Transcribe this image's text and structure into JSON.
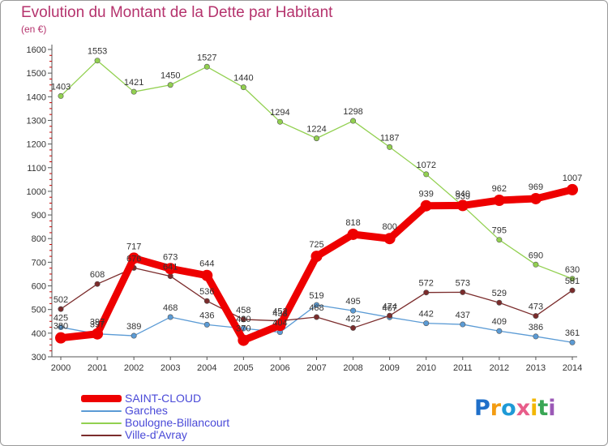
{
  "chart_data": {
    "type": "line",
    "title": "Evolution du Montant de la Dette par Habitant",
    "subtitle": "(en €)",
    "categories": [
      "2000",
      "2001",
      "2002",
      "2003",
      "2004",
      "2005",
      "2006",
      "2007",
      "2008",
      "2009",
      "2010",
      "2011",
      "2012",
      "2013",
      "2014"
    ],
    "ylim": [
      300,
      1600
    ],
    "yticks": [
      300,
      400,
      500,
      600,
      700,
      800,
      900,
      1000,
      1100,
      1200,
      1300,
      1400,
      1500,
      1600
    ],
    "grid": false,
    "legend_position": "bottom-left",
    "series": [
      {
        "name": "SAINT-CLOUD",
        "color": "#ee0000",
        "emphasis": true,
        "values": [
          380,
          397,
          717,
          673,
          644,
          370,
          433,
          725,
          818,
          800,
          939,
          940,
          962,
          969,
          1007
        ]
      },
      {
        "name": "Garches",
        "color": "#5b9bd5",
        "values": [
          425,
          397,
          389,
          468,
          436,
          420,
          404,
          519,
          495,
          467,
          442,
          437,
          409,
          386,
          361
        ]
      },
      {
        "name": "Boulogne-Billancourt",
        "color": "#92d050",
        "values": [
          1403,
          1553,
          1421,
          1450,
          1527,
          1440,
          1294,
          1224,
          1298,
          1187,
          1072,
          939,
          795,
          690,
          630
        ]
      },
      {
        "name": "Ville-d'Avray",
        "color": "#7b2c2c",
        "values": [
          502,
          608,
          676,
          641,
          536,
          458,
          452,
          468,
          422,
          474,
          572,
          573,
          529,
          473,
          581
        ]
      }
    ]
  },
  "logo": {
    "letters": [
      "P",
      "r",
      "o",
      "x",
      "i",
      "t",
      "i"
    ],
    "colors": [
      "#1f6fc9",
      "#f39c12",
      "#1f9ad6",
      "#e85d8a",
      "#f2b705",
      "#3aa655",
      "#9b59b6"
    ]
  }
}
